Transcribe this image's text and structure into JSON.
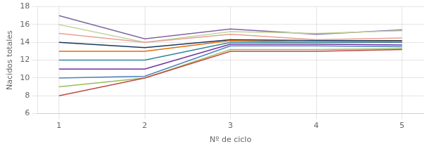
{
  "chart_data": {
    "type": "line",
    "xlabel": "Nº de ciclo",
    "ylabel": "Nacidos totales",
    "x": [
      1,
      2,
      3,
      4,
      5
    ],
    "series": [
      {
        "color": "#be4b48",
        "values": [
          8,
          10.0,
          13.0,
          13.0,
          13.2
        ]
      },
      {
        "color": "#9bbb59",
        "values": [
          9,
          10.0,
          13.2,
          13.2,
          13.3
        ]
      },
      {
        "color": "#4f81bd",
        "values": [
          10,
          10.2,
          13.6,
          13.6,
          13.5
        ]
      },
      {
        "color": "#7030a0",
        "values": [
          11,
          11.0,
          13.8,
          13.8,
          13.7
        ]
      },
      {
        "color": "#31849b",
        "values": [
          12,
          12.0,
          14.0,
          14.0,
          14.0
        ]
      },
      {
        "color": "#e36c09",
        "values": [
          13,
          13.0,
          14.2,
          14.0,
          14.1
        ]
      },
      {
        "color": "#17375e",
        "values": [
          14,
          13.4,
          14.3,
          14.2,
          14.2
        ]
      },
      {
        "color": "#e8a097",
        "values": [
          15,
          14.0,
          14.9,
          14.3,
          14.5
        ]
      },
      {
        "color": "#c3d69b",
        "values": [
          16,
          14.0,
          15.2,
          15.0,
          15.3
        ]
      },
      {
        "color": "#8064a2",
        "values": [
          17,
          14.4,
          15.5,
          14.9,
          15.4
        ]
      }
    ],
    "xlim": [
      0.75,
      5.25
    ],
    "ylim": [
      6,
      18
    ],
    "xticks": [
      1,
      2,
      3,
      4,
      5
    ],
    "yticks": [
      6,
      8,
      10,
      12,
      14,
      16,
      18
    ],
    "grid": true
  }
}
